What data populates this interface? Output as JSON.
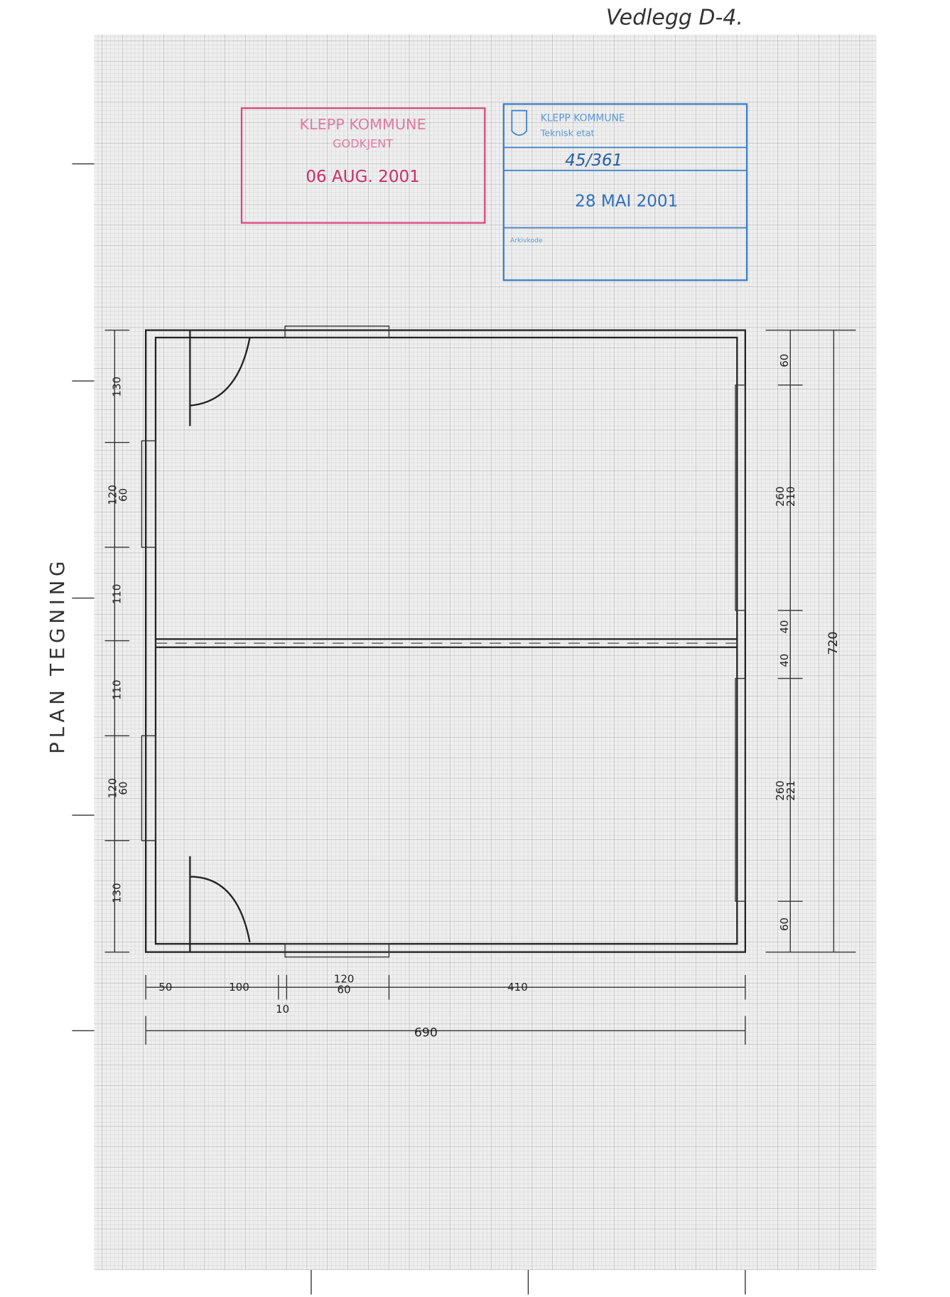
{
  "header": {
    "annotation": "Vedlegg D-4."
  },
  "title": "PLAN TEGNING",
  "stamps": [
    {
      "lines": [
        "KLEPP KOMMUNE",
        "GODKJENT",
        "06 AUG. 2001"
      ]
    },
    {
      "lines": [
        "KLEPP KOMMUNE",
        "Teknisk etat",
        "45/361",
        "28 MAI 2001",
        "Arkivkode"
      ]
    }
  ],
  "dimensions": {
    "left": [
      {
        "label": "130"
      },
      {
        "label": "120",
        "label2": "60"
      },
      {
        "label": "110"
      },
      {
        "label": "110"
      },
      {
        "label": "120",
        "label2": "60"
      },
      {
        "label": "130"
      }
    ],
    "right": [
      {
        "label": "60"
      },
      {
        "label": "260",
        "label2": "210"
      },
      {
        "label": "40"
      },
      {
        "label": "40"
      },
      {
        "label": "260",
        "label2": "221"
      },
      {
        "label": "60"
      }
    ],
    "total_height": "720",
    "bottom": [
      {
        "label": "50"
      },
      {
        "label": "100"
      },
      {
        "label": "10"
      },
      {
        "label": "120",
        "label2": "60"
      },
      {
        "label": "410"
      }
    ],
    "total_width": "690"
  }
}
